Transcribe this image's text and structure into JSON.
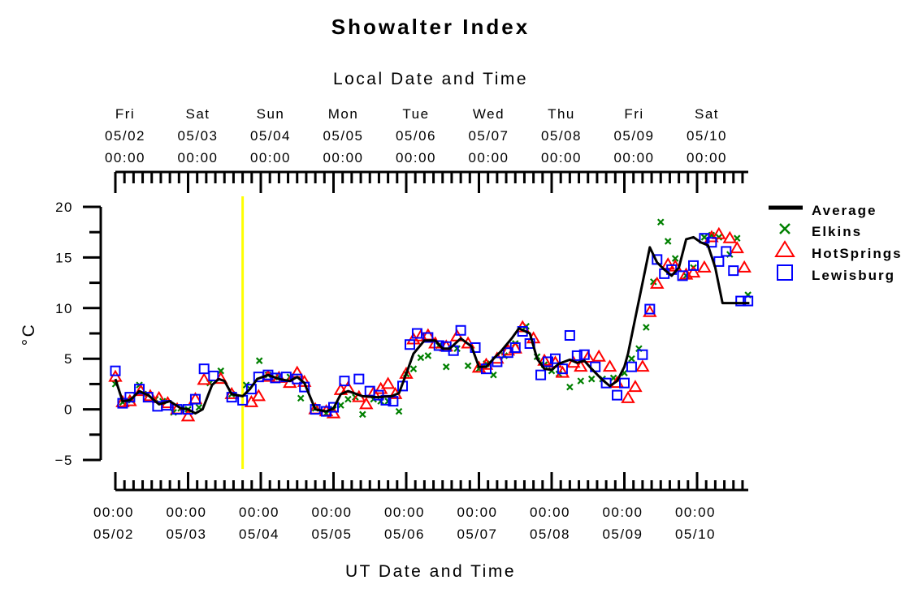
{
  "chart_data": {
    "type": "line",
    "title": "Showalter Index",
    "ylabel": "°C",
    "ylim": [
      -5,
      20
    ],
    "yticks": [
      "20",
      "15",
      "10",
      "5",
      "0",
      "−5"
    ],
    "top_axis": {
      "title": "Local Date and Time",
      "ticks": [
        {
          "day": "Fri",
          "date": "05/02",
          "time": "00:00"
        },
        {
          "day": "Sat",
          "date": "05/03",
          "time": "00:00"
        },
        {
          "day": "Sun",
          "date": "05/04",
          "time": "00:00"
        },
        {
          "day": "Mon",
          "date": "05/05",
          "time": "00:00"
        },
        {
          "day": "Tue",
          "date": "05/06",
          "time": "00:00"
        },
        {
          "day": "Wed",
          "date": "05/07",
          "time": "00:00"
        },
        {
          "day": "Thu",
          "date": "05/08",
          "time": "00:00"
        },
        {
          "day": "Fri",
          "date": "05/09",
          "time": "00:00"
        },
        {
          "day": "Sat",
          "date": "05/10",
          "time": "00:00"
        }
      ]
    },
    "bottom_axis": {
      "title": "UT Date and Time",
      "ticks": [
        {
          "time": "00:00",
          "date": "05/02"
        },
        {
          "time": "00:00",
          "date": "05/03"
        },
        {
          "time": "00:00",
          "date": "05/04"
        },
        {
          "time": "00:00",
          "date": "05/05"
        },
        {
          "time": "00:00",
          "date": "05/06"
        },
        {
          "time": "00:00",
          "date": "05/07"
        },
        {
          "time": "00:00",
          "date": "05/08"
        },
        {
          "time": "00:00",
          "date": "05/09"
        },
        {
          "time": "00:00",
          "date": "05/10"
        }
      ]
    },
    "marker_line": {
      "day": 1.75,
      "color": "#ffff00"
    },
    "legend_position": "right",
    "series": [
      {
        "name": "Average",
        "marker": "line",
        "color": "#000000",
        "x": [
          0,
          0.1,
          0.2,
          0.33,
          0.45,
          0.6,
          0.75,
          0.9,
          1.0,
          1.1,
          1.2,
          1.33,
          1.42,
          1.5,
          1.6,
          1.75,
          1.85,
          1.95,
          2.1,
          2.25,
          2.4,
          2.5,
          2.6,
          2.75,
          2.9,
          3.0,
          3.1,
          3.2,
          3.4,
          3.6,
          3.8,
          3.9,
          4.0,
          4.1,
          4.25,
          4.4,
          4.5,
          4.6,
          4.75,
          4.9,
          5.0,
          5.1,
          5.2,
          5.3,
          5.45,
          5.55,
          5.7,
          5.8,
          5.9,
          6.0,
          6.1,
          6.25,
          6.35,
          6.45,
          6.55,
          6.7,
          6.8,
          6.9,
          7.0,
          7.05,
          7.15,
          7.25,
          7.35,
          7.45,
          7.55,
          7.65,
          7.75,
          7.85,
          7.95,
          8.05,
          8.15,
          8.25,
          8.35,
          8.45,
          8.55,
          8.65,
          8.72
        ],
        "y": [
          3.0,
          0.8,
          0.9,
          1.8,
          1.4,
          0.5,
          0.8,
          0.1,
          0.0,
          -0.4,
          0.0,
          2.4,
          3.0,
          2.8,
          1.5,
          1.3,
          2.0,
          3.0,
          3.4,
          3.0,
          2.8,
          3.2,
          2.6,
          0.0,
          -0.2,
          0.1,
          1.5,
          1.8,
          1.3,
          1.2,
          1.3,
          1.6,
          3.5,
          5.5,
          6.8,
          6.8,
          6.0,
          6.0,
          7.0,
          6.2,
          4.2,
          4.2,
          5.0,
          5.7,
          7.0,
          8.0,
          7.5,
          5.0,
          4.0,
          3.9,
          4.5,
          4.9,
          4.6,
          4.8,
          4.0,
          2.9,
          2.3,
          2.8,
          4.2,
          5.5,
          9.0,
          12.5,
          16.0,
          14.5,
          13.8,
          13.2,
          14.0,
          16.8,
          17.0,
          16.5,
          16.2,
          14.0,
          10.5,
          10.5,
          10.5,
          10.5,
          10.5
        ]
      },
      {
        "name": "Elkins",
        "marker": "x",
        "color": "#008000",
        "x": [
          0.0,
          0.1,
          0.22,
          0.33,
          0.45,
          0.55,
          0.65,
          0.8,
          0.9,
          1.0,
          1.15,
          1.3,
          1.45,
          1.6,
          1.8,
          1.98,
          2.1,
          2.25,
          2.4,
          2.55,
          2.75,
          2.9,
          3.0,
          3.1,
          3.2,
          3.3,
          3.4,
          3.55,
          3.65,
          3.75,
          3.9,
          4.0,
          4.1,
          4.2,
          4.3,
          4.45,
          4.55,
          4.7,
          4.85,
          5.0,
          5.1,
          5.2,
          5.35,
          5.5,
          5.65,
          5.8,
          5.9,
          6.0,
          6.1,
          6.25,
          6.4,
          6.55,
          6.7,
          6.85,
          7.0,
          7.1,
          7.2,
          7.3,
          7.4,
          7.5,
          7.6,
          7.7,
          7.85,
          7.95,
          8.1,
          8.2,
          8.3,
          8.45,
          8.55,
          8.7
        ],
        "y": [
          2.5,
          0.7,
          0.9,
          2.4,
          1.5,
          1.0,
          0.8,
          -0.3,
          0.1,
          0.0,
          0.2,
          2.6,
          3.8,
          1.5,
          2.4,
          4.8,
          3.4,
          3.2,
          3.2,
          1.1,
          0.1,
          -0.4,
          0.0,
          0.4,
          1.0,
          1.2,
          -0.5,
          1.0,
          0.8,
          0.8,
          -0.2,
          3.5,
          4.0,
          5.1,
          5.3,
          6.3,
          4.2,
          6.0,
          4.3,
          4.0,
          4.5,
          3.4,
          5.3,
          6.5,
          8.2,
          5.2,
          4.4,
          3.8,
          3.5,
          2.2,
          2.8,
          3.0,
          3.0,
          3.1,
          3.6,
          5.0,
          6.0,
          8.1,
          12.6,
          18.5,
          16.6,
          14.9,
          13.2,
          14.0,
          17.0,
          17.2,
          17.0,
          15.3,
          16.9,
          11.3
        ]
      },
      {
        "name": "HotSprings",
        "marker": "triangle",
        "color": "#ff0000",
        "x": [
          0.0,
          0.1,
          0.2,
          0.35,
          0.48,
          0.6,
          0.72,
          0.85,
          1.0,
          1.1,
          1.22,
          1.45,
          1.6,
          1.87,
          1.97,
          2.1,
          2.25,
          2.4,
          2.5,
          2.6,
          2.75,
          2.9,
          3.0,
          3.1,
          3.2,
          3.35,
          3.45,
          3.55,
          3.65,
          3.75,
          3.85,
          4.0,
          4.1,
          4.2,
          4.3,
          4.4,
          4.55,
          4.7,
          4.85,
          5.0,
          5.1,
          5.25,
          5.4,
          5.5,
          5.6,
          5.75,
          5.9,
          6.05,
          6.15,
          6.3,
          6.4,
          6.5,
          6.65,
          6.8,
          6.9,
          7.05,
          7.15,
          7.25,
          7.35,
          7.45,
          7.6,
          7.7,
          7.85,
          7.95,
          8.1,
          8.2,
          8.3,
          8.45,
          8.55,
          8.65
        ],
        "y": [
          3.2,
          0.7,
          0.8,
          1.8,
          1.3,
          1.1,
          0.6,
          0.0,
          -0.7,
          1.0,
          2.9,
          3.0,
          1.5,
          0.7,
          1.3,
          3.2,
          3.1,
          2.6,
          3.6,
          2.7,
          0.0,
          -0.2,
          -0.4,
          1.9,
          2.1,
          1.2,
          0.5,
          1.6,
          2.0,
          2.5,
          1.5,
          3.5,
          6.9,
          7.2,
          7.3,
          6.5,
          6.2,
          7.2,
          6.5,
          4.1,
          4.4,
          5.0,
          5.8,
          6.0,
          8.1,
          7.0,
          4.8,
          4.6,
          3.6,
          4.6,
          4.2,
          5.1,
          5.2,
          4.2,
          2.6,
          1.1,
          2.2,
          4.2,
          9.6,
          12.4,
          14.3,
          14.1,
          13.3,
          13.5,
          14.0,
          17.0,
          17.3,
          16.9,
          15.9,
          14.0
        ]
      },
      {
        "name": "Lewisburg",
        "marker": "square",
        "color": "#0000ff",
        "x": [
          0.0,
          0.1,
          0.2,
          0.33,
          0.45,
          0.58,
          0.7,
          0.85,
          1.0,
          1.1,
          1.22,
          1.35,
          1.6,
          1.75,
          1.87,
          1.97,
          2.1,
          2.2,
          2.35,
          2.5,
          2.6,
          2.75,
          2.9,
          3.0,
          3.15,
          3.35,
          3.5,
          3.62,
          3.72,
          3.82,
          3.95,
          4.05,
          4.15,
          4.3,
          4.45,
          4.55,
          4.65,
          4.75,
          4.95,
          5.1,
          5.25,
          5.4,
          5.5,
          5.6,
          5.7,
          5.85,
          5.95,
          6.05,
          6.15,
          6.25,
          6.35,
          6.45,
          6.6,
          6.75,
          6.9,
          7.0,
          7.1,
          7.25,
          7.35,
          7.45,
          7.55,
          7.65,
          7.8,
          7.95,
          8.1,
          8.2,
          8.3,
          8.4,
          8.5,
          8.6,
          8.7
        ],
        "y": [
          3.8,
          0.6,
          1.2,
          2.0,
          1.2,
          0.3,
          0.4,
          0.0,
          0.0,
          1.0,
          4.0,
          3.3,
          1.2,
          0.9,
          2.0,
          3.2,
          3.4,
          3.1,
          3.2,
          3.0,
          2.2,
          0.0,
          -0.2,
          0.2,
          2.8,
          3.0,
          1.8,
          1.4,
          0.9,
          0.8,
          2.3,
          6.4,
          7.5,
          7.1,
          6.3,
          6.2,
          5.8,
          7.8,
          6.1,
          4.0,
          4.7,
          5.6,
          6.1,
          7.7,
          6.5,
          3.4,
          4.7,
          5.0,
          4.0,
          7.3,
          5.3,
          5.4,
          4.2,
          2.6,
          1.4,
          2.6,
          4.2,
          5.4,
          9.9,
          14.8,
          13.4,
          13.8,
          13.2,
          14.2,
          16.9,
          16.5,
          14.6,
          15.6,
          13.7,
          10.7,
          10.7
        ]
      }
    ]
  }
}
